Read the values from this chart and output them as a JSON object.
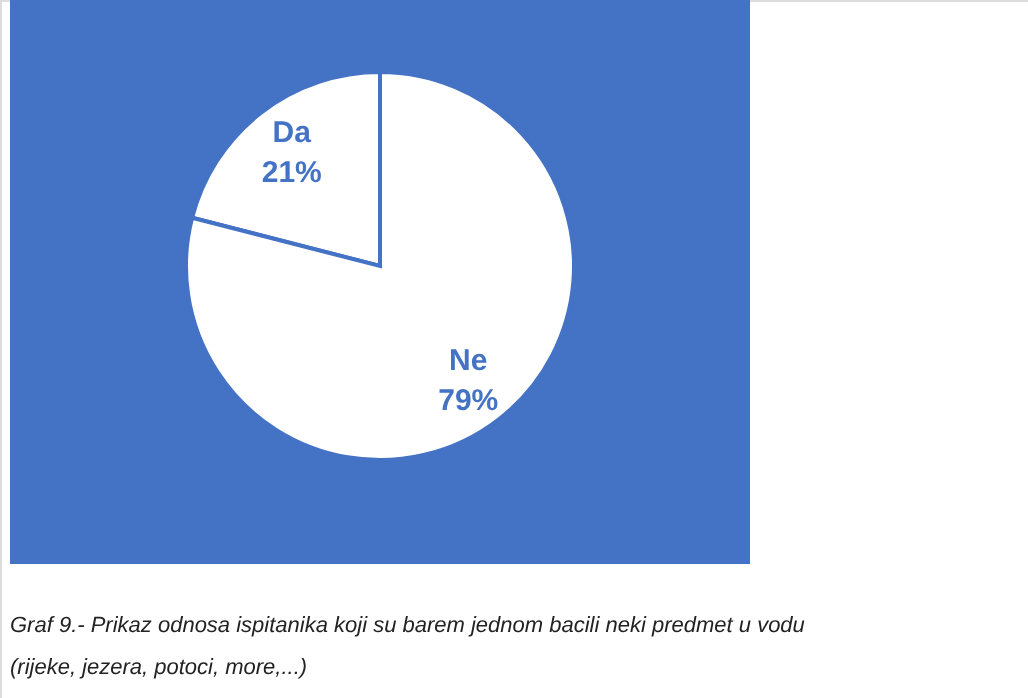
{
  "chart_data": {
    "type": "pie",
    "categories": [
      "Da",
      "Ne"
    ],
    "values": [
      21,
      79
    ],
    "colors": [
      "#ffffff",
      "#ffffff"
    ],
    "value_labels": [
      "21%",
      "79%"
    ],
    "annotations": [
      "Graf 9.- Prikaz odnosa ispitanika koji su barem jednom bacili neki predmet u vodu",
      "(rijeke, jezera, potoci, more,...)"
    ]
  }
}
